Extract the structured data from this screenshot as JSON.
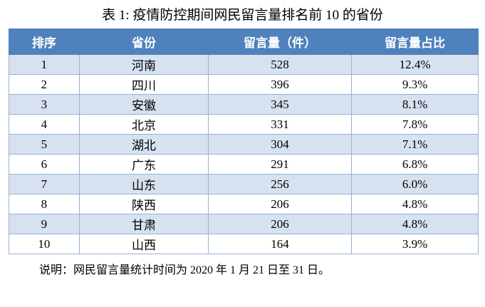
{
  "title": "表 1: 疫情防控期间网民留言量排名前 10 的省份",
  "note": "说明：网民留言量统计时间为 2020 年 1 月 21 日至 31 日。",
  "colors": {
    "header_bg": "#4F81BD",
    "header_text": "#FFFFFF",
    "band_row_bg": "#D7E1F0",
    "plain_row_bg": "#FFFFFF",
    "border": "#95B3D7",
    "body_text": "#000000"
  },
  "table": {
    "headers": [
      "排序",
      "省份",
      "留言量（件）",
      "留言量占比"
    ],
    "rows": [
      {
        "rank": "1",
        "province": "河南",
        "count": "528",
        "share": "12.4%"
      },
      {
        "rank": "2",
        "province": "四川",
        "count": "396",
        "share": "9.3%"
      },
      {
        "rank": "3",
        "province": "安徽",
        "count": "345",
        "share": "8.1%"
      },
      {
        "rank": "4",
        "province": "北京",
        "count": "331",
        "share": "7.8%"
      },
      {
        "rank": "5",
        "province": "湖北",
        "count": "304",
        "share": "7.1%"
      },
      {
        "rank": "6",
        "province": "广东",
        "count": "291",
        "share": "6.8%"
      },
      {
        "rank": "7",
        "province": "山东",
        "count": "256",
        "share": "6.0%"
      },
      {
        "rank": "8",
        "province": "陕西",
        "count": "206",
        "share": "4.8%"
      },
      {
        "rank": "9",
        "province": "甘肃",
        "count": "206",
        "share": "4.8%"
      },
      {
        "rank": "10",
        "province": "山西",
        "count": "164",
        "share": "3.9%"
      }
    ]
  },
  "chart_data": {
    "type": "table",
    "title": "表 1: 疫情防控期间网民留言量排名前 10 的省份",
    "columns": [
      "排序",
      "省份",
      "留言量（件）",
      "留言量占比"
    ],
    "categories": [
      "河南",
      "四川",
      "安徽",
      "北京",
      "湖北",
      "广东",
      "山东",
      "陕西",
      "甘肃",
      "山西"
    ],
    "series": [
      {
        "name": "留言量（件）",
        "values": [
          528,
          396,
          345,
          331,
          304,
          291,
          256,
          206,
          206,
          164
        ]
      },
      {
        "name": "留言量占比",
        "values": [
          "12.4%",
          "9.3%",
          "8.1%",
          "7.8%",
          "7.1%",
          "6.8%",
          "6.0%",
          "4.8%",
          "4.8%",
          "3.9%"
        ]
      }
    ],
    "annotations": [
      "说明：网民留言量统计时间为 2020 年 1 月 21 日至 31 日。"
    ]
  }
}
